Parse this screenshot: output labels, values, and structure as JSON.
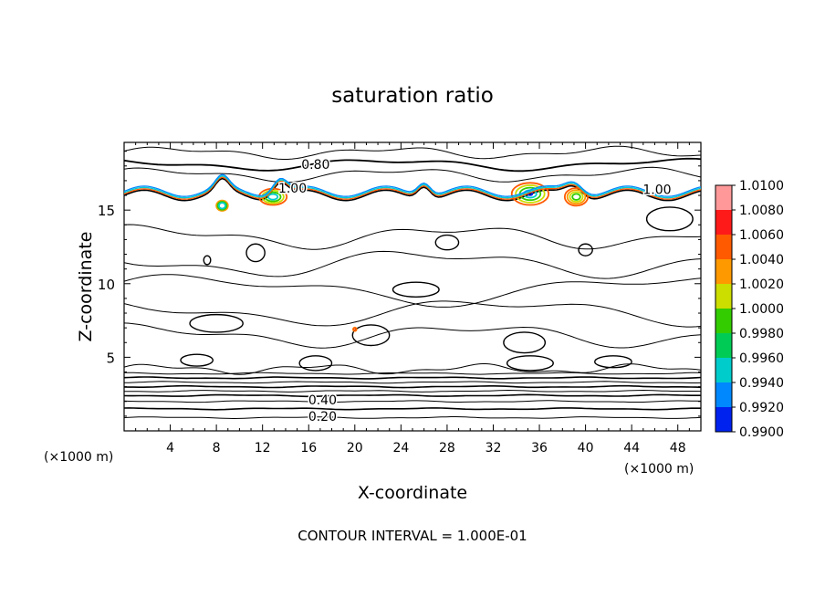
{
  "chart_data": {
    "type": "contour",
    "title": "saturation ratio",
    "xlabel": "X-coordinate",
    "ylabel": "Z-coordinate",
    "x_unit": "(×1000 m)",
    "z_unit": "(×1000 m)",
    "xlim": [
      0,
      50
    ],
    "ylim": [
      0,
      19.6
    ],
    "x_ticks": [
      4,
      8,
      12,
      16,
      20,
      24,
      28,
      32,
      36,
      40,
      44,
      48
    ],
    "y_ticks": [
      5,
      10,
      15
    ],
    "contour_interval_text": "CONTOUR INTERVAL = 1.000E-01",
    "contour_labels": [
      {
        "text": "0.80",
        "x": 16.6,
        "z": 18.1
      },
      {
        "text": "1.00",
        "x": 46.2,
        "z": 16.4
      },
      {
        "text": "1.00",
        "x": 14.6,
        "z": 16.5
      },
      {
        "text": "0.40",
        "x": 17.2,
        "z": 2.1
      },
      {
        "text": "0.20",
        "x": 17.2,
        "z": 1.0
      }
    ],
    "colorbar": {
      "levels": [
        1.01,
        1.008,
        1.006,
        1.004,
        1.002,
        1.0,
        0.998,
        0.996,
        0.994,
        0.992,
        0.99
      ],
      "labels": [
        "1.0100",
        "1.0080",
        "1.0060",
        "1.0040",
        "1.0020",
        "1.0000",
        "0.9980",
        "0.9960",
        "0.9940",
        "0.9920",
        "0.9900"
      ],
      "colors": [
        "#ff9999",
        "#ff1a1a",
        "#ff5a00",
        "#ff9900",
        "#ccdd00",
        "#33cc00",
        "#00cc55",
        "#00cccc",
        "#0088ff",
        "#0022ee",
        "#550099"
      ]
    }
  }
}
